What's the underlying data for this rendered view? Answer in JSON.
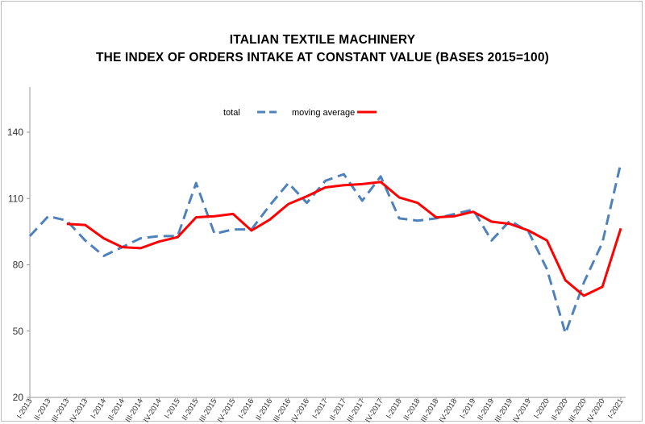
{
  "chart_data": {
    "type": "line",
    "title": "ITALIAN TEXTILE MACHINERY",
    "subtitle": "THE INDEX OF ORDERS INTAKE AT CONSTANT VALUE (BASES 2015=100)",
    "categories": [
      "I-2013",
      "II-2013",
      "III-2013",
      "IV-2013",
      "I-2014",
      "II-2014",
      "III-2014",
      "IV-2014",
      "I-2015",
      "II-2015",
      "III-2015",
      "IV-2015",
      "I-2016",
      "II-2016",
      "III-2016",
      "IV-2016",
      "I-2017",
      "II-2017",
      "III-2017",
      "IV-2017",
      "I-2018",
      "II-2018",
      "III-2018",
      "IV-2018",
      "I-2019",
      "II-2019",
      "III-2019",
      "IV-2019",
      "I-2020",
      "II-2020",
      "III-2020",
      "IV-2020",
      "I-2021"
    ],
    "ylim": [
      20,
      160
    ],
    "yticks": [
      20,
      50,
      80,
      110,
      140
    ],
    "grid": false,
    "legend": "top-center",
    "series": [
      {
        "name": "total",
        "color": "#4f81bd",
        "dashed": true,
        "values": [
          93,
          102,
          100,
          91,
          84,
          88,
          92,
          93,
          93,
          117,
          94,
          96,
          96,
          107,
          117,
          108,
          118,
          121,
          109,
          120,
          101,
          100,
          101,
          103,
          105,
          91,
          100,
          95,
          78,
          49,
          72,
          90,
          126
        ]
      },
      {
        "name": "moving average",
        "color": "#ff0000",
        "dashed": false,
        "values": [
          null,
          null,
          98.5,
          98,
          92,
          88,
          87.5,
          90.5,
          92.5,
          101.5,
          102,
          103,
          95.5,
          100.5,
          107.5,
          111,
          115,
          116,
          116.5,
          117.5,
          110.5,
          108,
          101.5,
          102,
          104,
          99.5,
          98.5,
          95.5,
          91,
          73,
          66,
          70,
          96.5
        ]
      }
    ]
  }
}
